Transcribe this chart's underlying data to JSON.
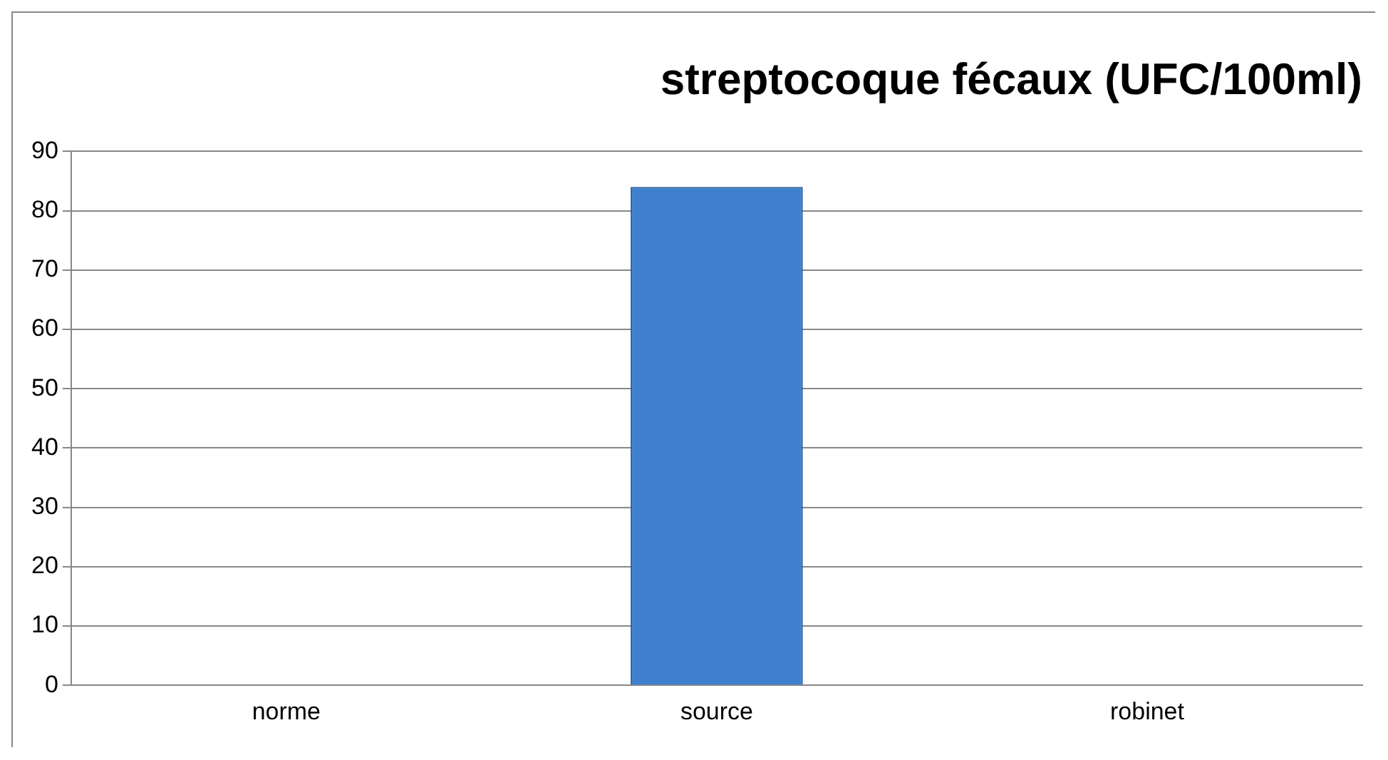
{
  "chart_data": {
    "type": "bar",
    "title": "streptocoque fécaux (UFC/100ml)",
    "categories": [
      "norme",
      "source",
      "robinet"
    ],
    "values": [
      0,
      84,
      0
    ],
    "color": "#3f7fcf",
    "ylim": [
      0,
      90
    ],
    "yticks": [
      0,
      10,
      20,
      30,
      40,
      50,
      60,
      70,
      80,
      90
    ],
    "grid": "y",
    "legend": false
  }
}
